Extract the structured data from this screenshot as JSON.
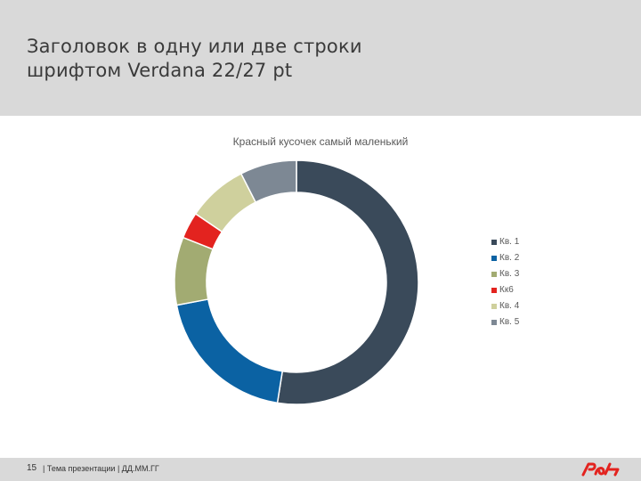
{
  "header": {
    "title": "Заголовок в одну или две строки\nшрифтом Verdana 22/27 pt"
  },
  "chart_data": {
    "type": "pie",
    "style": "donut",
    "title": "Красный кусочек самый маленький",
    "categories": [
      "Кв. 1",
      "Кв. 2",
      "Кв. 3",
      "Кк6",
      "Кв. 4",
      "Кв. 5"
    ],
    "values": [
      52.5,
      19.5,
      9,
      3.5,
      8,
      7.5
    ],
    "colors": [
      "#3a4a5a",
      "#0b62a3",
      "#a2ab72",
      "#e3231f",
      "#cfd09d",
      "#7d8894"
    ],
    "legend_position": "right"
  },
  "footer": {
    "page_number": "15",
    "topic": "| Тема презентации | ДД.ММ.ГГ"
  },
  "logo": {
    "icon": "rzd-logo-icon",
    "color": "#e3231f"
  }
}
